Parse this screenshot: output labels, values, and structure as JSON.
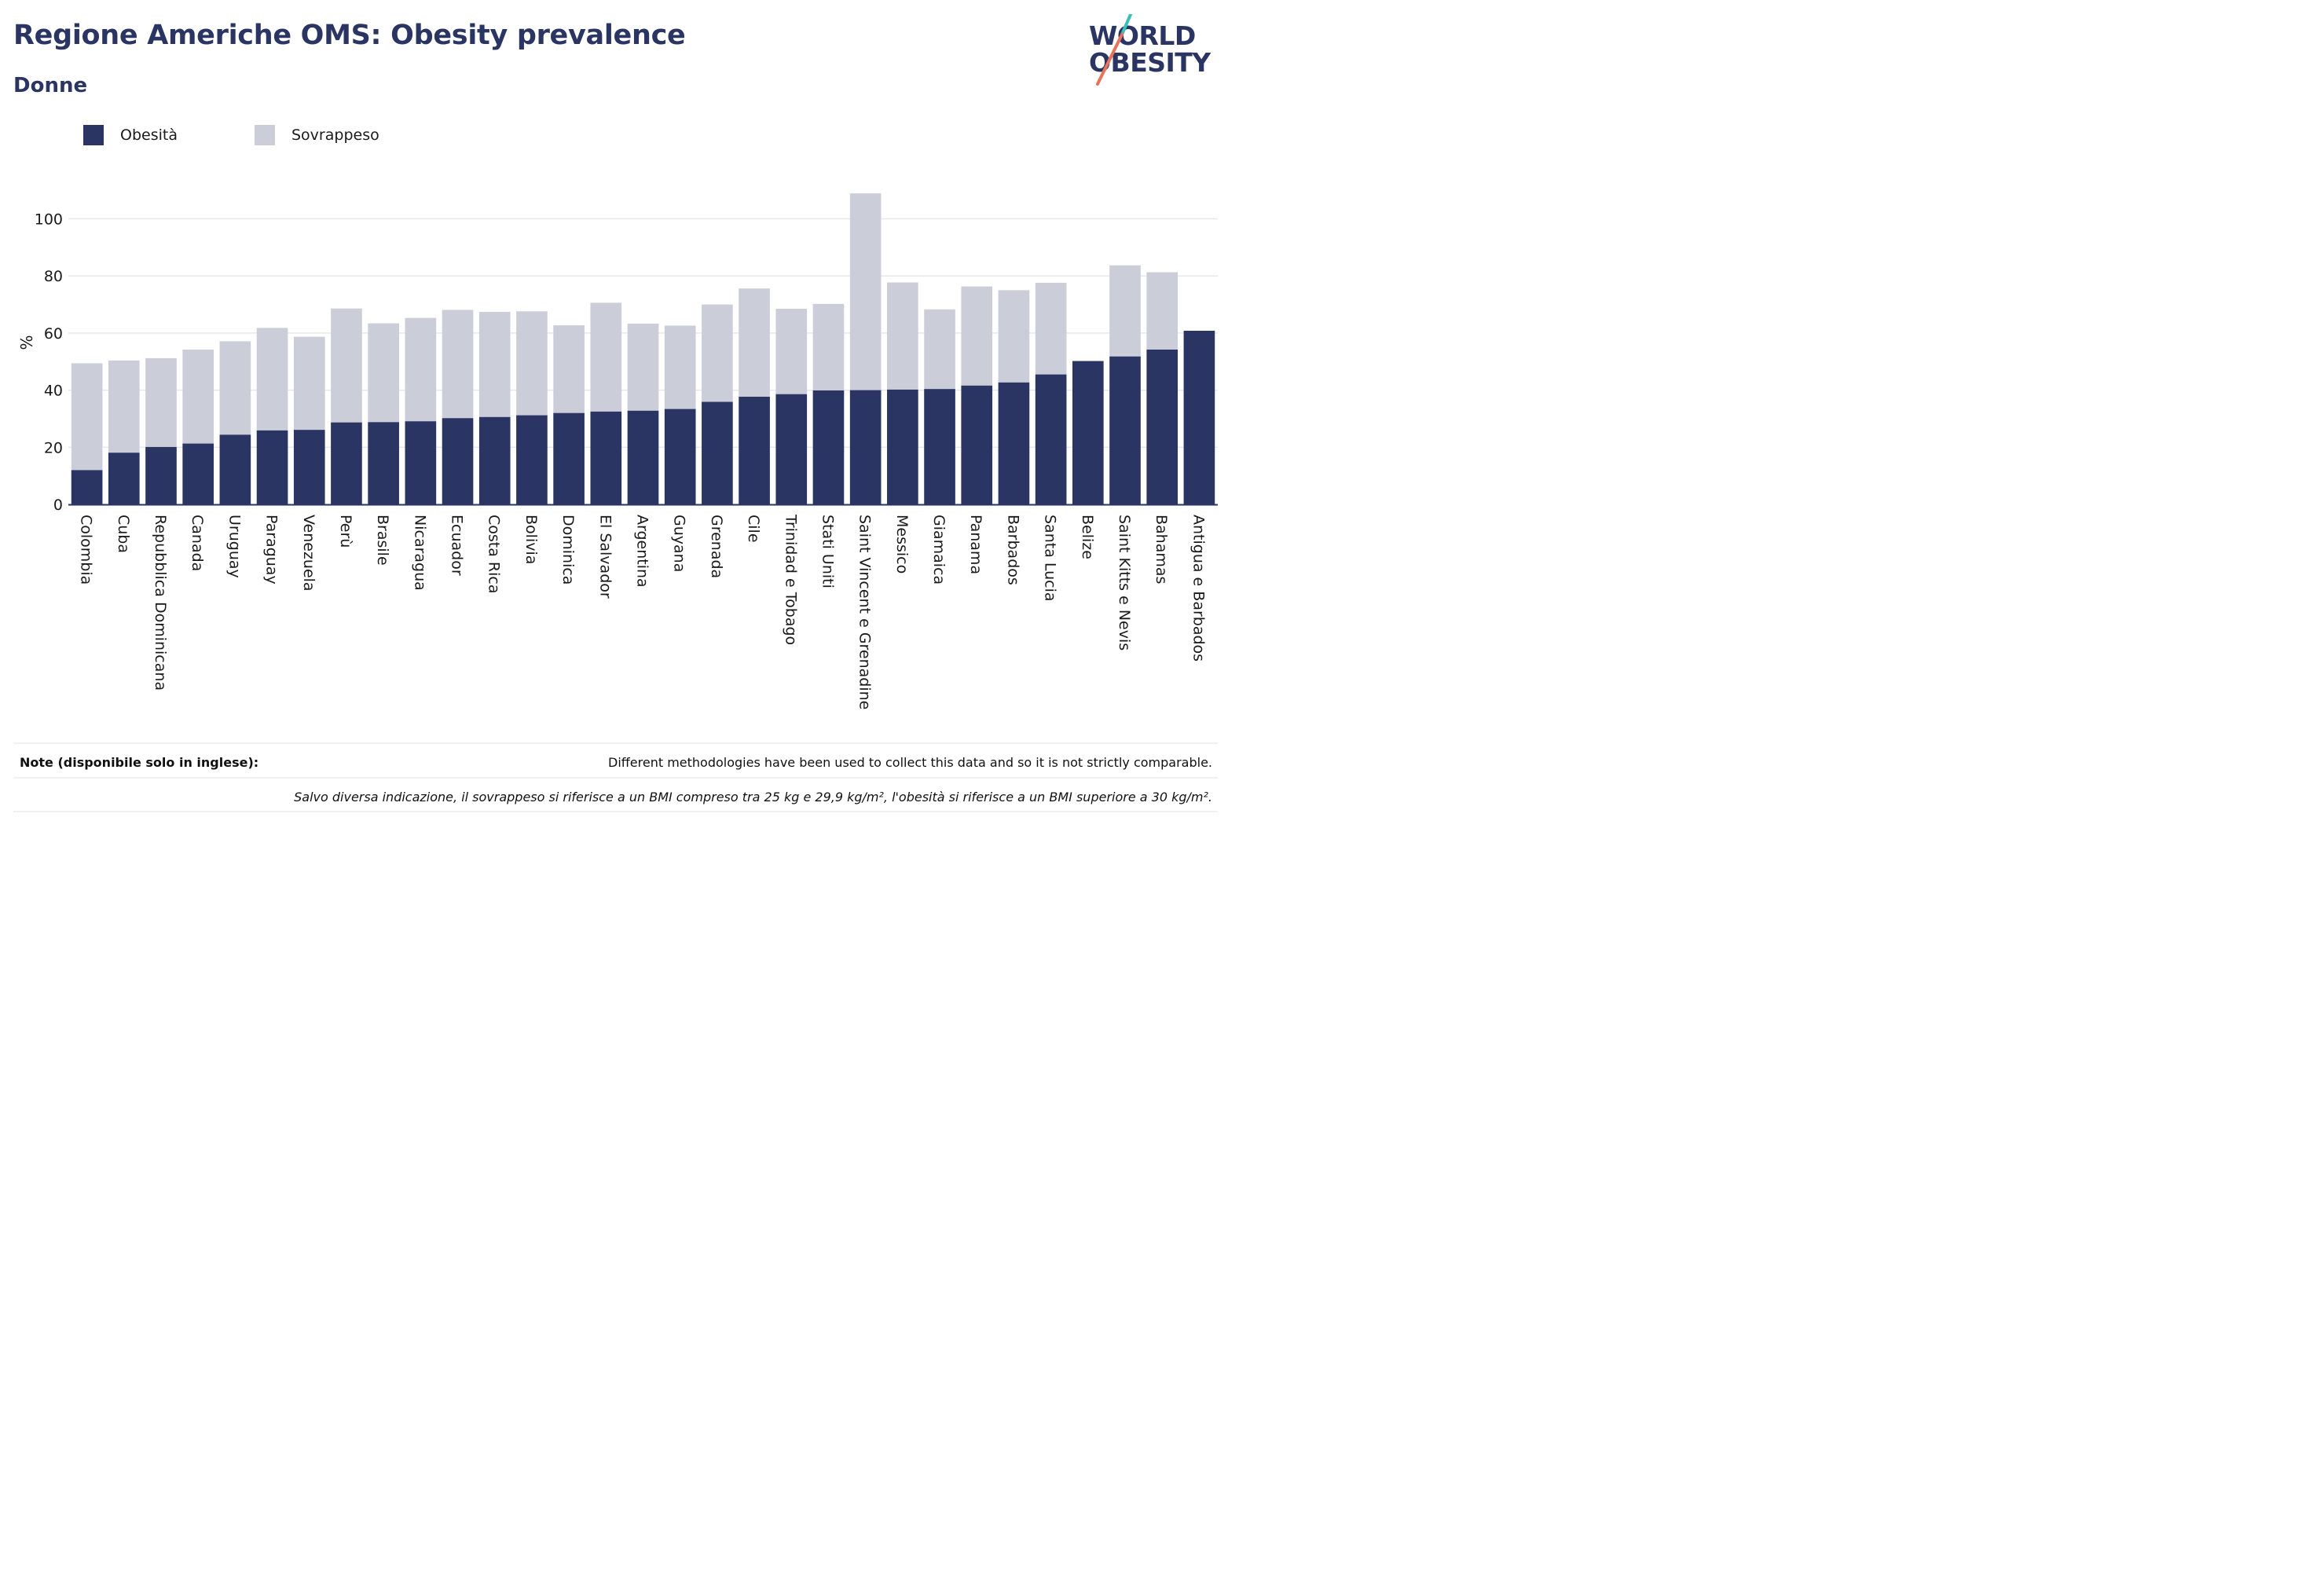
{
  "title": "Regione Americhe OMS: Obesity prevalence",
  "subtitle": "Donne",
  "logo": {
    "line1": "WORLD",
    "line2": "OBESITY"
  },
  "colors": {
    "obesity": "#2a3563",
    "overweight": "#cbcdd9",
    "text": "#2a3563",
    "accent_teal": "#3bbfb8",
    "accent_coral": "#e8735a"
  },
  "legend": [
    {
      "label": "Obesità",
      "color": "#2a3563"
    },
    {
      "label": "Sovrappeso",
      "color": "#cbcdd9"
    }
  ],
  "chart_data": {
    "type": "bar",
    "stacked": true,
    "ylabel": "%",
    "xlabel": "",
    "ylim": [
      0,
      110
    ],
    "yticks": [
      0,
      20,
      40,
      60,
      80,
      100
    ],
    "grid": true,
    "legend_position": "top-left",
    "categories": [
      "Colombia",
      "Cuba",
      "Repubblica Dominicana",
      "Canada",
      "Uruguay",
      "Paraguay",
      "Venezuela",
      "Perù",
      "Brasile",
      "Nicaragua",
      "Ecuador",
      "Costa Rica",
      "Bolivia",
      "Dominica",
      "El Salvador",
      "Argentina",
      "Guyana",
      "Grenada",
      "Cile",
      "Trinidad e Tobago",
      "Stati Uniti",
      "Saint Vincent e Grenadine",
      "Messico",
      "Giamaica",
      "Panama",
      "Barbados",
      "Santa Lucia",
      "Belize",
      "Saint Kitts e Nevis",
      "Bahamas",
      "Antigua e Barbados"
    ],
    "series": [
      {
        "name": "Obesità",
        "values": [
          12.0,
          18.1,
          20.1,
          21.3,
          24.4,
          25.9,
          26.1,
          28.7,
          28.8,
          29.1,
          30.2,
          30.6,
          31.2,
          32.0,
          32.5,
          32.8,
          33.4,
          35.9,
          37.7,
          38.6,
          39.9,
          40.0,
          40.2,
          40.4,
          41.6,
          42.7,
          45.5,
          50.2,
          51.8,
          54.2,
          60.8
        ]
      },
      {
        "name": "Sovrappeso",
        "values": [
          37.4,
          32.3,
          31.1,
          32.9,
          32.7,
          35.9,
          32.6,
          39.9,
          34.6,
          36.2,
          37.9,
          36.8,
          36.4,
          30.7,
          38.1,
          30.5,
          29.2,
          34.1,
          37.9,
          29.9,
          30.3,
          68.9,
          37.5,
          27.9,
          34.7,
          32.3,
          32.1,
          0,
          31.9,
          27.1,
          0
        ]
      }
    ]
  },
  "notes": {
    "label": "Note (disponibile solo in inglese):",
    "text": "Different methodologies have been used to collect this data and so it is not strictly comparable.",
    "footnote": "Salvo diversa indicazione, il sovrappeso si riferisce a un BMI compreso tra 25 kg e 29,9 kg/m², l'obesità si riferisce a un BMI superiore a 30 kg/m²."
  }
}
